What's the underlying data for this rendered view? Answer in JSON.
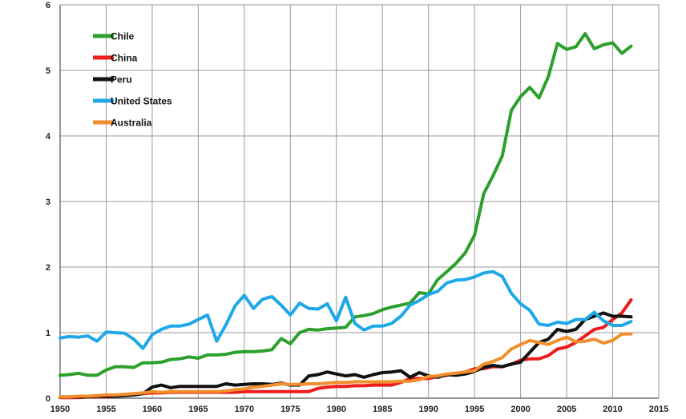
{
  "chart_data": {
    "type": "line",
    "title": "",
    "xlabel": "",
    "ylabel": "",
    "xlim": [
      1950,
      2015
    ],
    "ylim": [
      0,
      6
    ],
    "x_ticks": [
      1950,
      1955,
      1960,
      1965,
      1970,
      1975,
      1980,
      1985,
      1990,
      1995,
      2000,
      2005,
      2010,
      2015
    ],
    "y_ticks": [
      0,
      1,
      2,
      3,
      4,
      5,
      6
    ],
    "grid": true,
    "legend_position": "top-left",
    "x": [
      1950,
      1951,
      1952,
      1953,
      1954,
      1955,
      1956,
      1957,
      1958,
      1959,
      1960,
      1961,
      1962,
      1963,
      1964,
      1965,
      1966,
      1967,
      1968,
      1969,
      1970,
      1971,
      1972,
      1973,
      1974,
      1975,
      1976,
      1977,
      1978,
      1979,
      1980,
      1981,
      1982,
      1983,
      1984,
      1985,
      1986,
      1987,
      1988,
      1989,
      1990,
      1991,
      1992,
      1993,
      1994,
      1995,
      1996,
      1997,
      1998,
      1999,
      2000,
      2001,
      2002,
      2003,
      2004,
      2005,
      2006,
      2007,
      2008,
      2009,
      2010,
      2011,
      2012
    ],
    "series": [
      {
        "name": "Chile",
        "color": "#2ca02c",
        "values": [
          0.35,
          0.36,
          0.38,
          0.35,
          0.35,
          0.43,
          0.48,
          0.48,
          0.47,
          0.54,
          0.54,
          0.55,
          0.59,
          0.6,
          0.63,
          0.61,
          0.66,
          0.66,
          0.67,
          0.7,
          0.71,
          0.71,
          0.72,
          0.74,
          0.91,
          0.83,
          1.0,
          1.05,
          1.04,
          1.06,
          1.07,
          1.08,
          1.24,
          1.26,
          1.29,
          1.35,
          1.39,
          1.42,
          1.45,
          1.61,
          1.59,
          1.81,
          1.93,
          2.06,
          2.22,
          2.49,
          3.12,
          3.39,
          3.69,
          4.39,
          4.6,
          4.74,
          4.58,
          4.9,
          5.41,
          5.32,
          5.36,
          5.56,
          5.33,
          5.39,
          5.42,
          5.26,
          5.37
        ]
      },
      {
        "name": "China",
        "color": "#ee1c1c",
        "values": [
          0.01,
          0.01,
          0.01,
          0.02,
          0.02,
          0.02,
          0.03,
          0.04,
          0.05,
          0.07,
          0.08,
          0.08,
          0.09,
          0.09,
          0.09,
          0.09,
          0.09,
          0.09,
          0.09,
          0.09,
          0.1,
          0.1,
          0.1,
          0.1,
          0.1,
          0.1,
          0.1,
          0.1,
          0.15,
          0.17,
          0.18,
          0.18,
          0.19,
          0.19,
          0.2,
          0.2,
          0.2,
          0.24,
          0.3,
          0.3,
          0.3,
          0.33,
          0.35,
          0.38,
          0.4,
          0.45,
          0.45,
          0.48,
          0.48,
          0.52,
          0.58,
          0.6,
          0.6,
          0.65,
          0.75,
          0.78,
          0.85,
          0.95,
          1.05,
          1.08,
          1.2,
          1.3,
          1.5
        ]
      },
      {
        "name": "Peru",
        "color": "#111111",
        "values": [
          0.02,
          0.02,
          0.02,
          0.02,
          0.03,
          0.03,
          0.03,
          0.04,
          0.05,
          0.07,
          0.17,
          0.2,
          0.16,
          0.18,
          0.18,
          0.18,
          0.18,
          0.18,
          0.22,
          0.2,
          0.21,
          0.22,
          0.22,
          0.21,
          0.23,
          0.2,
          0.2,
          0.34,
          0.36,
          0.4,
          0.37,
          0.34,
          0.36,
          0.32,
          0.36,
          0.39,
          0.4,
          0.42,
          0.32,
          0.39,
          0.34,
          0.32,
          0.36,
          0.35,
          0.37,
          0.41,
          0.47,
          0.5,
          0.48,
          0.52,
          0.55,
          0.7,
          0.85,
          0.9,
          1.05,
          1.02,
          1.05,
          1.2,
          1.25,
          1.3,
          1.25,
          1.25,
          1.24
        ]
      },
      {
        "name": "United States",
        "color": "#1fa8e8",
        "values": [
          0.92,
          0.94,
          0.93,
          0.95,
          0.87,
          1.01,
          1.0,
          0.99,
          0.9,
          0.76,
          0.97,
          1.05,
          1.1,
          1.1,
          1.13,
          1.2,
          1.27,
          0.87,
          1.12,
          1.41,
          1.57,
          1.37,
          1.51,
          1.55,
          1.42,
          1.27,
          1.45,
          1.37,
          1.36,
          1.44,
          1.18,
          1.54,
          1.14,
          1.04,
          1.1,
          1.1,
          1.14,
          1.25,
          1.42,
          1.49,
          1.58,
          1.63,
          1.76,
          1.8,
          1.81,
          1.85,
          1.91,
          1.93,
          1.86,
          1.6,
          1.44,
          1.34,
          1.13,
          1.11,
          1.16,
          1.14,
          1.2,
          1.2,
          1.31,
          1.18,
          1.11,
          1.11,
          1.17
        ]
      },
      {
        "name": "Australia",
        "color": "#f28e2b",
        "values": [
          0.02,
          0.02,
          0.03,
          0.03,
          0.04,
          0.05,
          0.05,
          0.06,
          0.07,
          0.08,
          0.1,
          0.09,
          0.1,
          0.1,
          0.1,
          0.1,
          0.1,
          0.1,
          0.11,
          0.13,
          0.14,
          0.17,
          0.18,
          0.2,
          0.22,
          0.21,
          0.21,
          0.22,
          0.22,
          0.23,
          0.24,
          0.24,
          0.25,
          0.25,
          0.25,
          0.25,
          0.25,
          0.26,
          0.26,
          0.28,
          0.33,
          0.34,
          0.37,
          0.38,
          0.4,
          0.42,
          0.52,
          0.56,
          0.62,
          0.75,
          0.82,
          0.88,
          0.85,
          0.82,
          0.88,
          0.93,
          0.86,
          0.87,
          0.9,
          0.84,
          0.88,
          0.98,
          0.98
        ]
      }
    ]
  }
}
